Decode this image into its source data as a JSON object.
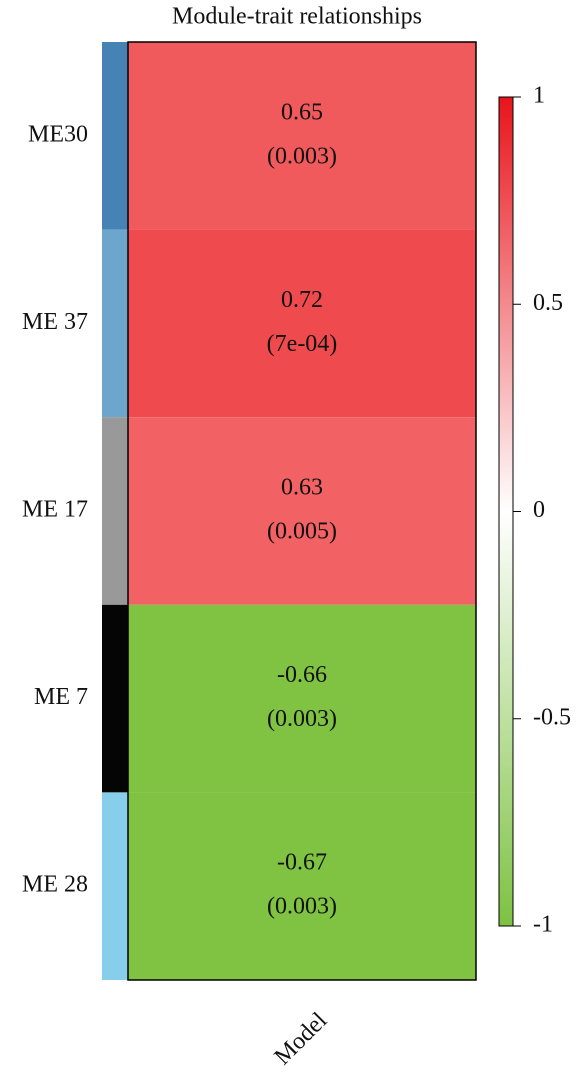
{
  "chart_data": {
    "type": "heatmap",
    "title": "Module-trait relationships",
    "rows": [
      "ME30",
      "ME 37",
      "ME 17",
      "ME 7",
      "ME 28"
    ],
    "row_colors": [
      "#4682b4",
      "#6ca6cd",
      "#999999",
      "#050505",
      "#87ceeb"
    ],
    "columns": [
      "Model"
    ],
    "values": [
      0.65,
      0.72,
      0.63,
      -0.66,
      -0.67
    ],
    "pvalues": [
      {
        "value": 0.003,
        "label": "(0.003)"
      },
      {
        "value": 0.0007,
        "label": "(7e-04)"
      },
      {
        "value": 0.005,
        "label": "(0.005)"
      },
      {
        "value": 0.003,
        "label": "(0.003)"
      },
      {
        "value": 0.003,
        "label": "(0.003)"
      }
    ],
    "cell_colors": [
      "#f15a5c",
      "#ef4a4d",
      "#f26264",
      "#80c241",
      "#80c241"
    ],
    "colorbar_colors": [
      "#7dc242",
      "#ffffff",
      "#e8141b"
    ],
    "clim": [
      -1,
      1
    ],
    "cticks": [
      1,
      0.5,
      0,
      -0.5,
      -1
    ]
  }
}
